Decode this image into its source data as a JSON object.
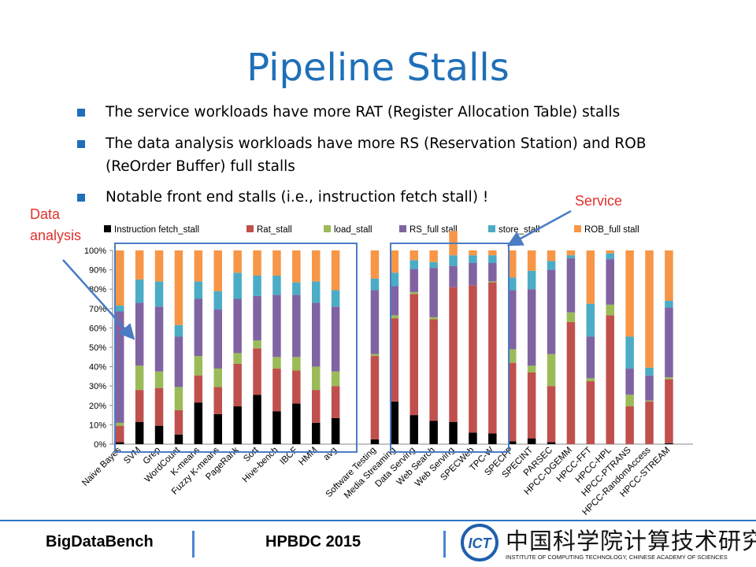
{
  "slide": {
    "title": "Pipeline Stalls",
    "bullets": [
      "The service workloads have more RAT (Register Allocation Table) stalls",
      "The data analysis workloads have more RS (Reservation Station) and ROB (ReOrder Buffer) full stalls",
      "Notable front end stalls (i.e., instruction fetch stall) !"
    ],
    "callouts": {
      "data_line1": "Data",
      "data_line2": "analysis",
      "service": "Service"
    },
    "colors": {
      "accent": "#1f6fb8",
      "callout": "#e0312b",
      "group_box": "#4a7cc4"
    }
  },
  "footer": {
    "left": "BigDataBench",
    "center": "HPBDC 2015",
    "logo_text": "ICT",
    "logo_chinese": "中国科学院计算技术研究所",
    "logo_english": "INSTITUTE OF COMPUTING TECHNOLOGY, CHINESE ACADEMY OF SCIENCES"
  },
  "chart_data": {
    "type": "bar",
    "stacked": true,
    "normalized": true,
    "ylim": [
      0,
      100
    ],
    "yticks": [
      "0%",
      "10%",
      "20%",
      "30%",
      "40%",
      "50%",
      "60%",
      "70%",
      "80%",
      "90%",
      "100%"
    ],
    "grid": false,
    "legend_position": "top",
    "categories": [
      "Naive Bayes",
      "SVM",
      "Grep",
      "WordCount",
      "K-means",
      "Fuzzy K-means",
      "PageRank",
      "Sort",
      "Hive-bench",
      "IBCF",
      "HMM",
      "avg",
      "",
      "Software Testing",
      "Media Streaming",
      "Data Serving",
      "Web Search",
      "Web Serving",
      "SPECWeb",
      "TPC-W",
      "SPECFP",
      "SPECINT",
      "PARSEC",
      "HPCC-DGEMM",
      "HPCC-FFT",
      "HPCC-HPL",
      "HPCC-PTRANS",
      "HPCC-RandomAccess",
      "HPCC-STREAM"
    ],
    "series": [
      {
        "name": "Instruction fetch_stall",
        "color": "#000000",
        "values": [
          1,
          11.5,
          9.5,
          5,
          21.5,
          15.5,
          19.5,
          25.5,
          17,
          21,
          11,
          13.5,
          0,
          2.5,
          22,
          15,
          12,
          11.5,
          6,
          5.5,
          1.5,
          3,
          1,
          0,
          0,
          0,
          0,
          0,
          0.5
        ]
      },
      {
        "name": "Rat_stall",
        "color": "#c0504d",
        "values": [
          8.5,
          16.5,
          19.5,
          12.5,
          14,
          14,
          22,
          24,
          22,
          17,
          17,
          16.5,
          0,
          43,
          43,
          62.5,
          52.5,
          69.5,
          76,
          78,
          40.5,
          34,
          29,
          63,
          32.5,
          66.5,
          19.5,
          22,
          33
        ]
      },
      {
        "name": "load_stall",
        "color": "#9bbb59",
        "values": [
          1.5,
          12.5,
          8.5,
          12,
          10,
          9.5,
          5.5,
          4,
          6,
          7,
          12,
          7.5,
          0,
          1,
          1.5,
          1,
          1,
          0,
          0,
          0.5,
          7,
          3.5,
          16.5,
          5,
          1.5,
          5.5,
          6,
          0.5,
          1
        ]
      },
      {
        "name": "RS_full stall",
        "color": "#8064a2",
        "values": [
          57.5,
          32.5,
          33.5,
          26,
          29.5,
          30.5,
          28,
          23,
          32,
          32,
          33,
          33.5,
          0,
          33,
          15,
          12,
          25.5,
          11,
          11.5,
          9.5,
          30.5,
          39.5,
          43.5,
          28,
          21.5,
          23.5,
          13.5,
          13,
          36
        ]
      },
      {
        "name": "store_stall",
        "color": "#4bacc6",
        "values": [
          3,
          12,
          13,
          6,
          9,
          9.5,
          13.5,
          10.5,
          10,
          6.5,
          11,
          8.5,
          0,
          6,
          7,
          4.5,
          3,
          5.5,
          4,
          4,
          6.5,
          9.5,
          4.5,
          1.5,
          17,
          3,
          16.5,
          4,
          3.5
        ]
      },
      {
        "name": "ROB_full stall",
        "color": "#f79646",
        "values": [
          28.5,
          15,
          16,
          38.5,
          16,
          21,
          11.5,
          13,
          13,
          16.5,
          16,
          20.5,
          0,
          14.5,
          11.5,
          5,
          6,
          12.5,
          2.5,
          2.5,
          14,
          10.5,
          5.5,
          2.5,
          27.5,
          1.5,
          44.5,
          60.5,
          26
        ]
      }
    ]
  }
}
